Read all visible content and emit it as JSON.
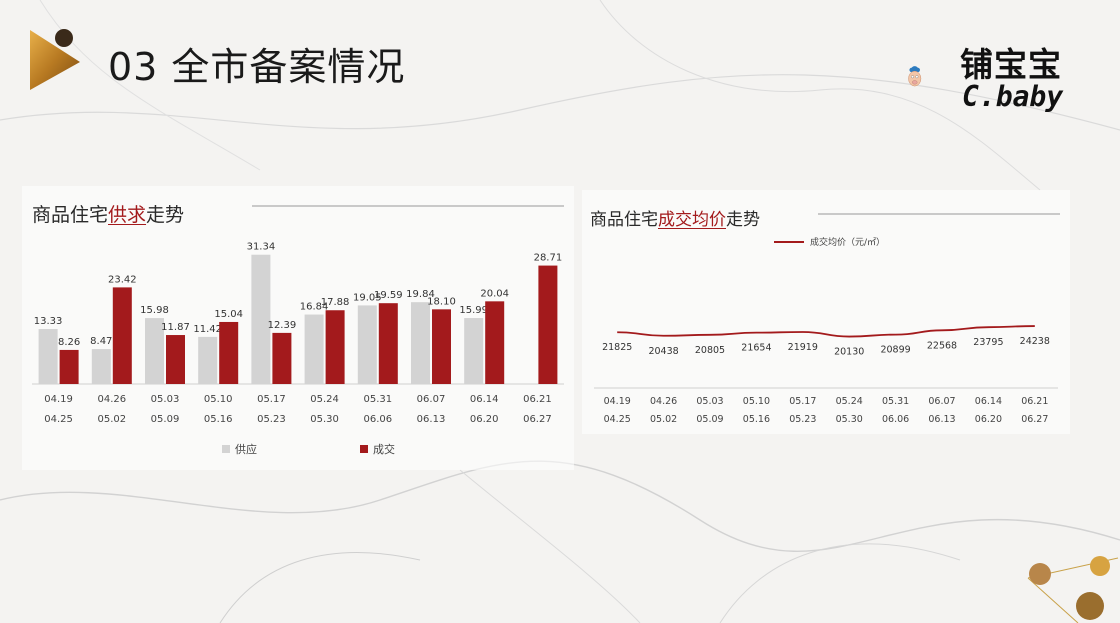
{
  "slide": {
    "title": "03 全市备案情况",
    "logo": {
      "name_cn": "铺宝宝",
      "name_en": "C.baby"
    }
  },
  "colors": {
    "supply": "#d3d3d3",
    "deal": "#a31a1c",
    "price_line": "#a31a1c",
    "accent": "#a31a1c"
  },
  "chart_data": [
    {
      "type": "bar",
      "title_parts": [
        "商品住宅",
        "供求",
        "走势"
      ],
      "categories": [
        [
          "04.19",
          "04.25"
        ],
        [
          "04.26",
          "05.02"
        ],
        [
          "05.03",
          "05.09"
        ],
        [
          "05.10",
          "05.16"
        ],
        [
          "05.17",
          "05.23"
        ],
        [
          "05.24",
          "05.30"
        ],
        [
          "05.31",
          "06.06"
        ],
        [
          "06.07",
          "06.13"
        ],
        [
          "06.14",
          "06.20"
        ],
        [
          "06.21",
          "06.27"
        ]
      ],
      "series": [
        {
          "name": "供应",
          "values": [
            13.33,
            8.47,
            15.98,
            11.42,
            31.34,
            16.84,
            19.05,
            19.84,
            15.99,
            null
          ],
          "labels": [
            "13.33",
            "8.47",
            "15.98",
            "11.42",
            "31.34",
            "16.84",
            "19.05",
            "19.84",
            "15.99",
            ""
          ]
        },
        {
          "name": "成交",
          "values": [
            8.26,
            23.42,
            11.87,
            15.04,
            12.39,
            17.88,
            19.59,
            18.1,
            20.04,
            28.71
          ],
          "labels": [
            "8.26",
            "23.42",
            "11.87",
            "15.04",
            "12.39",
            "17.88",
            "19.59",
            "18.10",
            "20.04",
            "28.71"
          ]
        }
      ],
      "ylim": [
        0,
        32
      ],
      "legend_position": "bottom"
    },
    {
      "type": "line",
      "title_parts": [
        "商品住宅",
        "成交均价",
        "走势"
      ],
      "categories": [
        [
          "04.19",
          "04.25"
        ],
        [
          "04.26",
          "05.02"
        ],
        [
          "05.03",
          "05.09"
        ],
        [
          "05.10",
          "05.16"
        ],
        [
          "05.17",
          "05.23"
        ],
        [
          "05.24",
          "05.30"
        ],
        [
          "05.31",
          "06.06"
        ],
        [
          "06.07",
          "06.13"
        ],
        [
          "06.14",
          "06.20"
        ],
        [
          "06.21",
          "06.27"
        ]
      ],
      "series": [
        {
          "name": "成交均价（元/㎡）",
          "values": [
            21825,
            20438,
            20805,
            21654,
            21919,
            20130,
            20899,
            22568,
            23795,
            24238
          ]
        }
      ],
      "ylim": [
        0,
        54000
      ],
      "legend_position": "top"
    }
  ]
}
